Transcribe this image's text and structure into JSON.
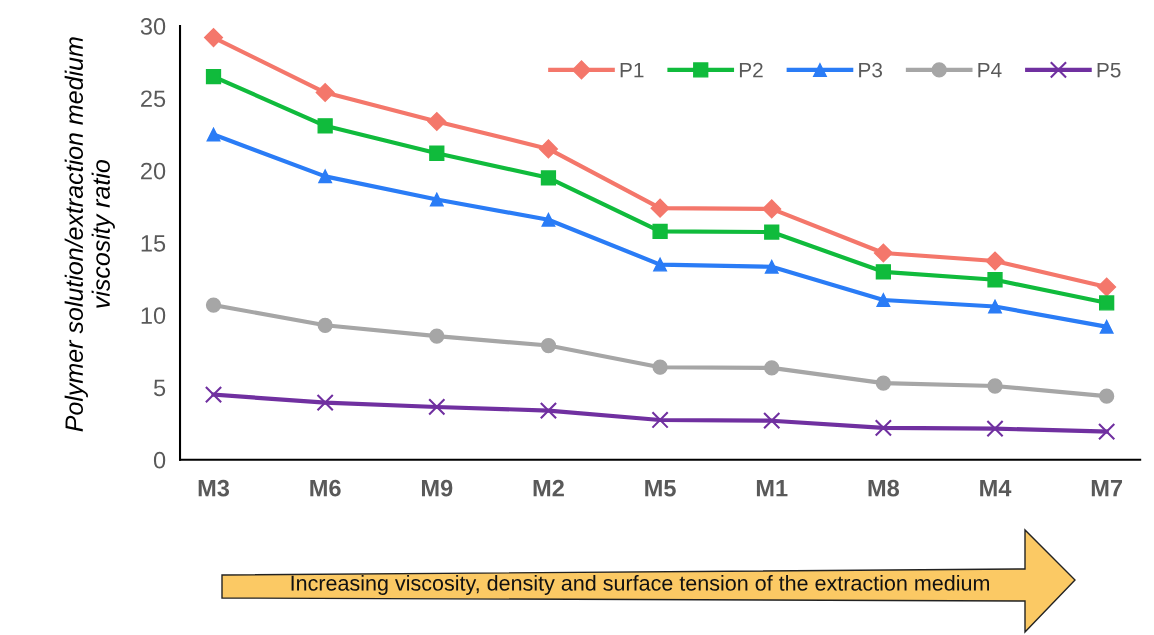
{
  "chart_data": {
    "type": "line",
    "ylabel": "Polymer solution/extraction medium viscosity ratio",
    "categories": [
      "M3",
      "M6",
      "M9",
      "M2",
      "M5",
      "M1",
      "M8",
      "M4",
      "M7"
    ],
    "series": [
      {
        "name": "P1",
        "color": "#f4776b",
        "marker": "diamond",
        "values": [
          29.2,
          25.4,
          23.4,
          21.5,
          17.4,
          17.35,
          14.3,
          13.75,
          11.95
        ]
      },
      {
        "name": "P2",
        "color": "#10bb3c",
        "marker": "square",
        "values": [
          26.5,
          23.1,
          21.2,
          19.5,
          15.8,
          15.75,
          13.0,
          12.45,
          10.85
        ]
      },
      {
        "name": "P3",
        "color": "#2a7cf6",
        "marker": "triangle",
        "values": [
          22.5,
          19.6,
          18.0,
          16.6,
          13.5,
          13.35,
          11.05,
          10.6,
          9.2
        ]
      },
      {
        "name": "P4",
        "color": "#a6a6a6",
        "marker": "circle",
        "values": [
          10.7,
          9.3,
          8.55,
          7.9,
          6.4,
          6.35,
          5.3,
          5.1,
          4.4
        ]
      },
      {
        "name": "P5",
        "color": "#7030a0",
        "marker": "cross",
        "values": [
          4.5,
          3.95,
          3.65,
          3.4,
          2.75,
          2.7,
          2.2,
          2.15,
          1.95
        ]
      }
    ],
    "ylim": [
      0,
      30
    ],
    "yticks": [
      0,
      5,
      10,
      15,
      20,
      25,
      30
    ],
    "grid": false,
    "legend": "top right",
    "line_style": "solid",
    "annotations": [
      "Increasing viscosity, density and surface tension of the extraction medium"
    ]
  }
}
